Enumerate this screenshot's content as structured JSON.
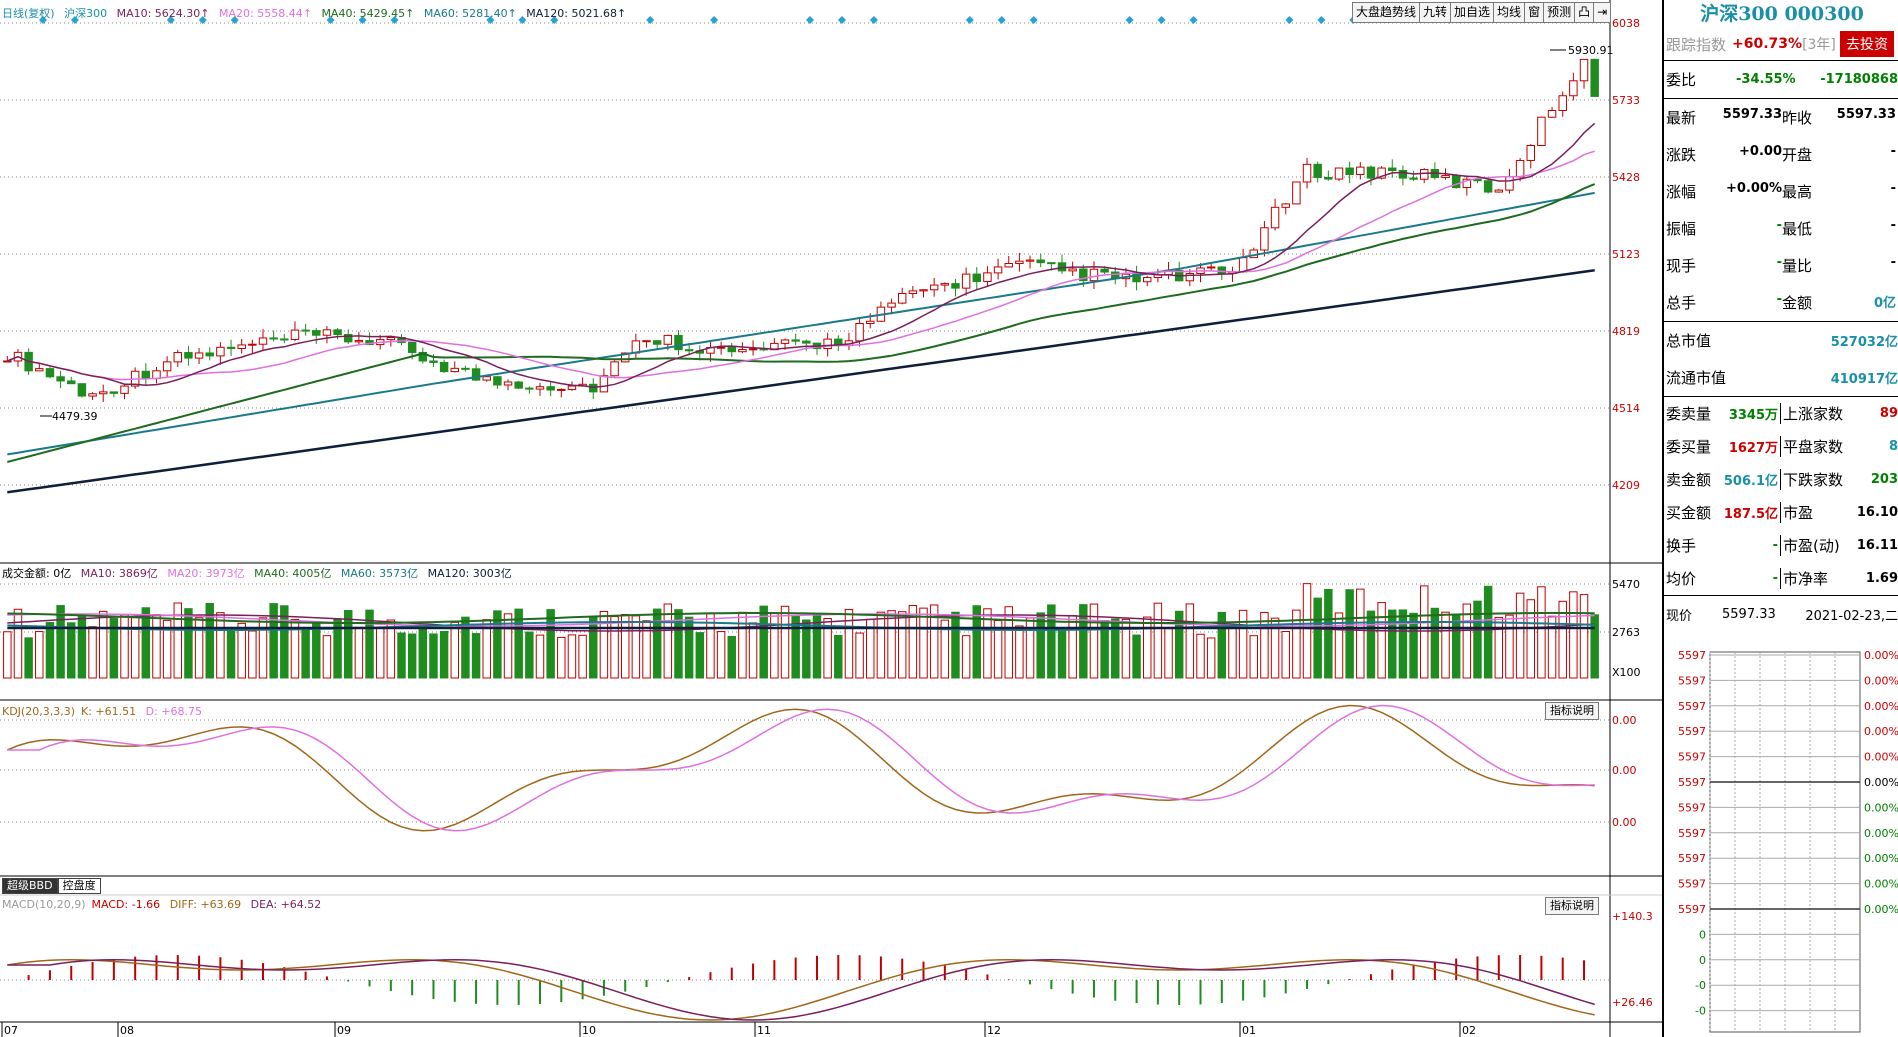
{
  "main_legend": {
    "title": "日线(复权)",
    "name": "沪深300",
    "ma10": "MA10: 5624.30↑",
    "ma20": "MA20: 5558.44↑",
    "ma40": "MA40: 5429.45↑",
    "ma60": "MA60: 5281.40↑",
    "ma120": "MA120: 5021.68↑"
  },
  "toolbar": [
    "大盘趋势线",
    "九转",
    "加自选",
    "均线",
    "窗",
    "预测",
    "凸",
    "⇥"
  ],
  "price_axis": [
    "6038",
    "5733",
    "5428",
    "5123",
    "4819",
    "4514",
    "4209"
  ],
  "annotations": {
    "high": "5930.91",
    "low": "4479.39"
  },
  "volume_legend": {
    "label": "成交金额: 0亿",
    "ma10": "MA10: 3869亿",
    "ma20": "MA20: 3973亿",
    "ma40": "MA40: 4005亿",
    "ma60": "MA60: 3573亿",
    "ma120": "MA120: 3003亿"
  },
  "volume_axis": [
    "5470",
    "2763",
    "X100"
  ],
  "kdj_legend": {
    "label": "KDJ(20,3,3,3)",
    "k": "K: +61.51",
    "d": "D: +68.75"
  },
  "kdj_axis": [
    "0.00",
    "0.00",
    "0.00"
  ],
  "indicator_help": "指标说明",
  "tabs": [
    "超级BBD",
    "控盘度"
  ],
  "macd_legend": {
    "label": "MACD(10,20,9)",
    "macd": "MACD: -1.66",
    "diff": "DIFF: +63.69",
    "dea": "DEA: +64.52"
  },
  "macd_axis": [
    "+140.3",
    "+26.46"
  ],
  "x_axis": [
    "07",
    "08",
    "09",
    "10",
    "11",
    "12",
    "01",
    "02"
  ],
  "colors": {
    "up": "#c00000",
    "down": "#1e8c1e",
    "ma10": "#7a1f5a",
    "ma20": "#e070e0",
    "ma40": "#1f6b1f",
    "ma60": "#1a7a8a",
    "ma120": "#0d1f3a",
    "k": "#a0661a",
    "d": "#e070e0"
  },
  "panel": {
    "title": "沪深300 000300",
    "track_label": "跟踪指数",
    "track_value": "+60.73%",
    "track_period": "[3年]",
    "track_button": "去投资",
    "weibi_label": "委比",
    "weibi_pct": "-34.55%",
    "weibi_val": "-17180868",
    "rows": [
      {
        "k1": "最新",
        "v1": "5597.33",
        "k2": "昨收",
        "v2": "5597.33"
      },
      {
        "k1": "涨跌",
        "v1": "+0.00",
        "k2": "开盘",
        "v2": "-"
      },
      {
        "k1": "涨幅",
        "v1": "+0.00%",
        "k2": "最高",
        "v2": "-"
      },
      {
        "k1": "振幅",
        "v1": "-",
        "k2": "最低",
        "v2": "-"
      },
      {
        "k1": "现手",
        "v1": "-",
        "k2": "量比",
        "v2": "-"
      },
      {
        "k1": "总手",
        "v1": "-",
        "k2": "金额",
        "v2": "0亿"
      }
    ],
    "mktcap_label": "总市值",
    "mktcap": "527032亿",
    "float_label": "流通市值",
    "float": "410917亿",
    "grid": [
      {
        "k1": "委卖量",
        "v1": "3345万",
        "k2": "上涨家数",
        "v2": "89"
      },
      {
        "k1": "委买量",
        "v1": "1627万",
        "k2": "平盘家数",
        "v2": "8"
      },
      {
        "k1": "卖金额",
        "v1": "506.1亿",
        "k2": "下跌家数",
        "v2": "203"
      },
      {
        "k1": "买金额",
        "v1": "187.5亿",
        "k2": "市盈",
        "v2": "16.10"
      },
      {
        "k1": "换手",
        "v1": "-",
        "k2": "市盈(动)",
        "v2": "16.11"
      },
      {
        "k1": "均价",
        "v1": "-",
        "k2": "市净率",
        "v2": "1.69"
      }
    ],
    "now_label": "现价",
    "now_price": "5597.33",
    "now_date": "2021-02-23,二",
    "mini_left": [
      "5597",
      "5597",
      "5597",
      "5597",
      "5597",
      "5597",
      "5597",
      "5597",
      "5597",
      "5597",
      "5597",
      "0",
      "0",
      "-0",
      "-0"
    ],
    "mini_right": [
      "0.00%",
      "0.00%",
      "0.00%",
      "0.00%",
      "0.00%",
      "0.00%",
      "0.00%",
      "0.00%",
      "0.00%",
      "0.00%",
      "0.00%"
    ]
  }
}
